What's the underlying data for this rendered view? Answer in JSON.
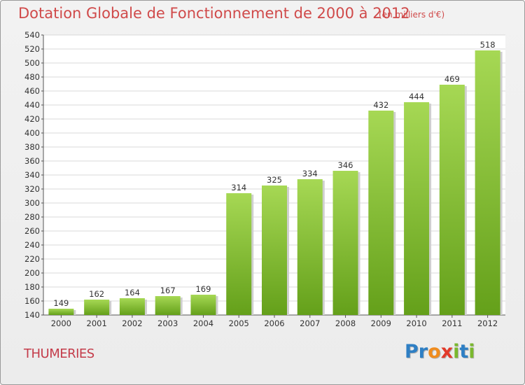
{
  "title": "Dotation Globale de Fonctionnement de 2000 à 2012",
  "subtitle": "(en milliers d'€)",
  "city": "THUMERIES",
  "logo": {
    "letters": [
      "P",
      "r",
      "o",
      "x",
      "i",
      "t",
      "i"
    ],
    "colors": [
      "#2e7fc4",
      "#2e7fc4",
      "#f08c1e",
      "#e23a2a",
      "#7ab82e",
      "#2e7fc4",
      "#7ab82e"
    ]
  },
  "colors": {
    "bar_light": "#a6d854",
    "bar_dark": "#64a01a",
    "grid": "#d8d8d8",
    "title": "#d04a4a"
  },
  "chart_data": {
    "type": "bar",
    "categories": [
      "2000",
      "2001",
      "2002",
      "2003",
      "2004",
      "2005",
      "2006",
      "2007",
      "2008",
      "2009",
      "2010",
      "2011",
      "2012"
    ],
    "values": [
      149,
      162,
      164,
      167,
      169,
      314,
      325,
      334,
      346,
      432,
      444,
      469,
      518
    ],
    "ylim": [
      140,
      540
    ],
    "yticks": [
      140,
      160,
      180,
      200,
      220,
      240,
      260,
      280,
      300,
      320,
      340,
      360,
      380,
      400,
      420,
      440,
      460,
      480,
      500,
      520,
      540
    ],
    "grid": true,
    "xlabel": "",
    "ylabel": ""
  }
}
